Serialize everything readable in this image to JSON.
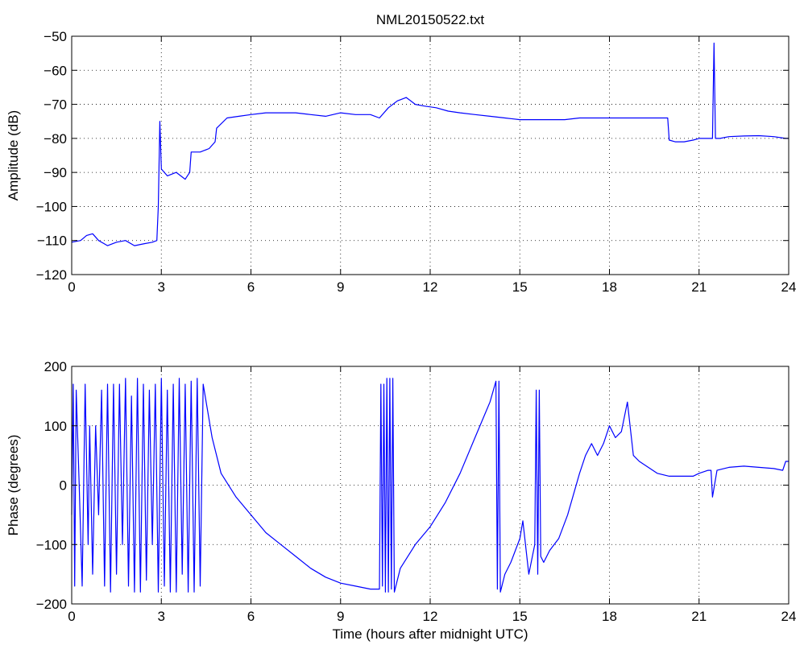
{
  "window": {
    "title": "NML20150522.txt"
  },
  "chart_data": [
    {
      "type": "line",
      "title": "NML20150522.txt",
      "xlabel": "",
      "ylabel": "Amplitude (dB)",
      "xlim": [
        0,
        24
      ],
      "ylim": [
        -120,
        -50
      ],
      "xticks": [
        0,
        3,
        6,
        9,
        12,
        15,
        18,
        21,
        24
      ],
      "yticks": [
        -120,
        -110,
        -100,
        -90,
        -80,
        -70,
        -60,
        -50
      ],
      "xtick_labels": [
        "0",
        "3",
        "6",
        "9",
        "12",
        "15",
        "18",
        "21",
        "24"
      ],
      "ytick_labels": [
        "−120",
        "−110",
        "−100",
        "−90",
        "−80",
        "−70",
        "−60",
        "−50"
      ],
      "grid": true,
      "color": "#0000ff",
      "series": [
        {
          "x": [
            0,
            0.3,
            0.5,
            0.7,
            0.9,
            1.2,
            1.5,
            1.8,
            2.1,
            2.4,
            2.7,
            2.85,
            2.9,
            2.95,
            3.0,
            3.2,
            3.5,
            3.8,
            3.95,
            4.0,
            4.3,
            4.6,
            4.8,
            4.85,
            5.2,
            5.6,
            6.0,
            6.5,
            7.0,
            7.5,
            8.0,
            8.5,
            9.0,
            9.5,
            10.0,
            10.3,
            10.6,
            10.9,
            11.2,
            11.5,
            11.8,
            12.2,
            12.6,
            13.0,
            13.5,
            14.0,
            14.5,
            15.0,
            15.5,
            16.0,
            16.5,
            17.0,
            17.5,
            18.0,
            18.5,
            19.0,
            19.5,
            19.95,
            20.0,
            20.2,
            20.5,
            20.8,
            21.0,
            21.3,
            21.45,
            21.5,
            21.55,
            21.7,
            22.0,
            22.5,
            23.0,
            23.5,
            23.9,
            24.0
          ],
          "y": [
            -110.5,
            -110,
            -108.5,
            -108,
            -110,
            -111.5,
            -110.5,
            -110,
            -111.5,
            -111,
            -110.5,
            -110,
            -100,
            -75,
            -89,
            -91,
            -90,
            -92,
            -90,
            -84,
            -84,
            -83,
            -81,
            -77,
            -74,
            -73.5,
            -73,
            -72.5,
            -72.5,
            -72.5,
            -73,
            -73.5,
            -72.5,
            -73,
            -73,
            -74,
            -71,
            -69,
            -68,
            -70,
            -70.5,
            -71,
            -72,
            -72.5,
            -73,
            -73.5,
            -74,
            -74.5,
            -74.5,
            -74.5,
            -74.5,
            -74,
            -74,
            -74,
            -74,
            -74,
            -74,
            -74,
            -80.5,
            -81,
            -81,
            -80.5,
            -80,
            -80,
            -80,
            -52,
            -80,
            -80,
            -79.5,
            -79.3,
            -79.2,
            -79.5,
            -80,
            -80
          ]
        }
      ]
    },
    {
      "type": "line",
      "title": "",
      "xlabel": "Time (hours after midnight UTC)",
      "ylabel": "Phase (degrees)",
      "xlim": [
        0,
        24
      ],
      "ylim": [
        -200,
        200
      ],
      "xticks": [
        0,
        3,
        6,
        9,
        12,
        15,
        18,
        21,
        24
      ],
      "yticks": [
        -200,
        -100,
        0,
        100,
        200
      ],
      "xtick_labels": [
        "0",
        "3",
        "6",
        "9",
        "12",
        "15",
        "18",
        "21",
        "24"
      ],
      "ytick_labels": [
        "−200",
        "−100",
        "0",
        "100",
        "200"
      ],
      "grid": true,
      "color": "#0000ff",
      "series": [
        {
          "x": [
            0,
            0.05,
            0.1,
            0.15,
            0.25,
            0.35,
            0.45,
            0.55,
            0.6,
            0.7,
            0.8,
            0.9,
            1.0,
            1.1,
            1.2,
            1.3,
            1.4,
            1.5,
            1.6,
            1.7,
            1.8,
            1.9,
            2.0,
            2.1,
            2.2,
            2.3,
            2.4,
            2.5,
            2.6,
            2.7,
            2.8,
            2.9,
            3.0,
            3.1,
            3.2,
            3.3,
            3.4,
            3.5,
            3.6,
            3.7,
            3.8,
            3.9,
            4.0,
            4.1,
            4.2,
            4.3,
            4.4,
            4.7,
            5.0,
            5.5,
            6.0,
            6.5,
            7.0,
            7.5,
            8.0,
            8.5,
            9.0,
            9.5,
            10.0,
            10.3,
            10.35,
            10.4,
            10.45,
            10.5,
            10.55,
            10.6,
            10.65,
            10.7,
            10.75,
            10.8,
            11.0,
            11.5,
            12.0,
            12.5,
            13.0,
            13.5,
            14.0,
            14.2,
            14.25,
            14.3,
            14.35,
            14.4,
            14.5,
            14.7,
            15.0,
            15.1,
            15.3,
            15.5,
            15.55,
            15.6,
            15.65,
            15.7,
            15.8,
            16.0,
            16.3,
            16.6,
            17.0,
            17.2,
            17.4,
            17.6,
            17.8,
            18.0,
            18.2,
            18.4,
            18.6,
            18.8,
            19.0,
            19.3,
            19.6,
            20.0,
            20.4,
            20.8,
            21.0,
            21.3,
            21.4,
            21.45,
            21.6,
            22.0,
            22.5,
            23.0,
            23.5,
            23.8,
            23.9,
            24.0
          ],
          "y": [
            -50,
            170,
            -170,
            160,
            0,
            -170,
            170,
            -100,
            100,
            -150,
            100,
            -50,
            160,
            -170,
            170,
            -180,
            170,
            -150,
            170,
            -100,
            180,
            -170,
            150,
            -180,
            180,
            -180,
            170,
            -160,
            160,
            -100,
            170,
            -180,
            180,
            -170,
            160,
            -180,
            170,
            -180,
            180,
            -150,
            170,
            -180,
            175,
            -180,
            180,
            -170,
            170,
            80,
            20,
            -20,
            -50,
            -80,
            -100,
            -120,
            -140,
            -155,
            -165,
            -170,
            -175,
            -175,
            170,
            -170,
            170,
            -180,
            180,
            -180,
            180,
            -175,
            180,
            -180,
            -140,
            -100,
            -70,
            -30,
            20,
            80,
            140,
            175,
            -175,
            175,
            -180,
            -170,
            -150,
            -130,
            -90,
            -60,
            -150,
            -100,
            160,
            -150,
            160,
            -120,
            -130,
            -110,
            -90,
            -50,
            20,
            50,
            70,
            50,
            70,
            100,
            80,
            90,
            140,
            50,
            40,
            30,
            20,
            15,
            15,
            15,
            20,
            25,
            25,
            -20,
            25,
            30,
            32,
            30,
            28,
            25,
            40,
            40
          ]
        }
      ]
    }
  ]
}
